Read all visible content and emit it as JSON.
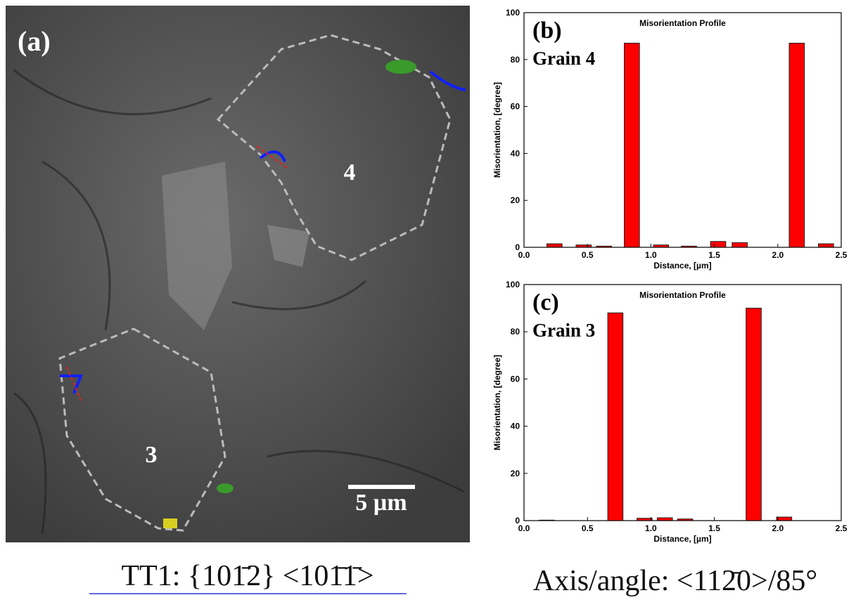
{
  "image": {
    "label": "(a)",
    "grain_labels": [
      "4",
      "3"
    ],
    "scale_bar": "5 µm"
  },
  "captions": {
    "left": "TT1: {101̄2} <101̄1̄>",
    "right": "Axis/angle: <112̄0>/85°"
  },
  "chart_data": [
    {
      "type": "bar",
      "panel": "(b)",
      "grain": "Grain 4",
      "title": "Misorientation Profile",
      "x_label": "Distance, [µm]",
      "y_label": "Misorientation, [degree]",
      "color": "#ff0000",
      "x": [
        0.24,
        0.47,
        0.63,
        0.85,
        1.08,
        1.3,
        1.53,
        1.7,
        2.15,
        2.38
      ],
      "values": [
        1.5,
        1,
        0.5,
        87,
        1,
        0.5,
        2.5,
        2,
        87,
        1.5
      ],
      "xlim": [
        0,
        2.5
      ],
      "ylim": [
        0,
        100
      ],
      "xticks": [
        {
          "value": 0,
          "label": "0.0"
        },
        0.5,
        {
          "value": 1,
          "label": "1.0"
        },
        1.5,
        {
          "value": 2,
          "label": "2.0"
        },
        2.5
      ],
      "yticks": [
        0,
        20,
        40,
        60,
        80,
        100
      ]
    },
    {
      "type": "bar",
      "panel": "(c)",
      "grain": "Grain 3",
      "title": "Misorientation Profile",
      "x_label": "Distance, [µm]",
      "y_label": "Misorientation, [degree]",
      "color": "#ff0000",
      "x": [
        0.18,
        0.72,
        0.95,
        1.11,
        1.27,
        1.81,
        2.05
      ],
      "values": [
        0.2,
        88,
        1,
        1.2,
        0.7,
        90,
        1.5
      ],
      "xlim": [
        0,
        2.5
      ],
      "ylim": [
        0,
        100
      ],
      "xticks": [
        {
          "value": 0,
          "label": "0.0"
        },
        0.5,
        {
          "value": 1,
          "label": "1.0"
        },
        1.5,
        {
          "value": 2,
          "label": "2.0"
        },
        2.5
      ],
      "yticks": [
        0,
        20,
        40,
        60,
        80,
        100
      ]
    }
  ]
}
